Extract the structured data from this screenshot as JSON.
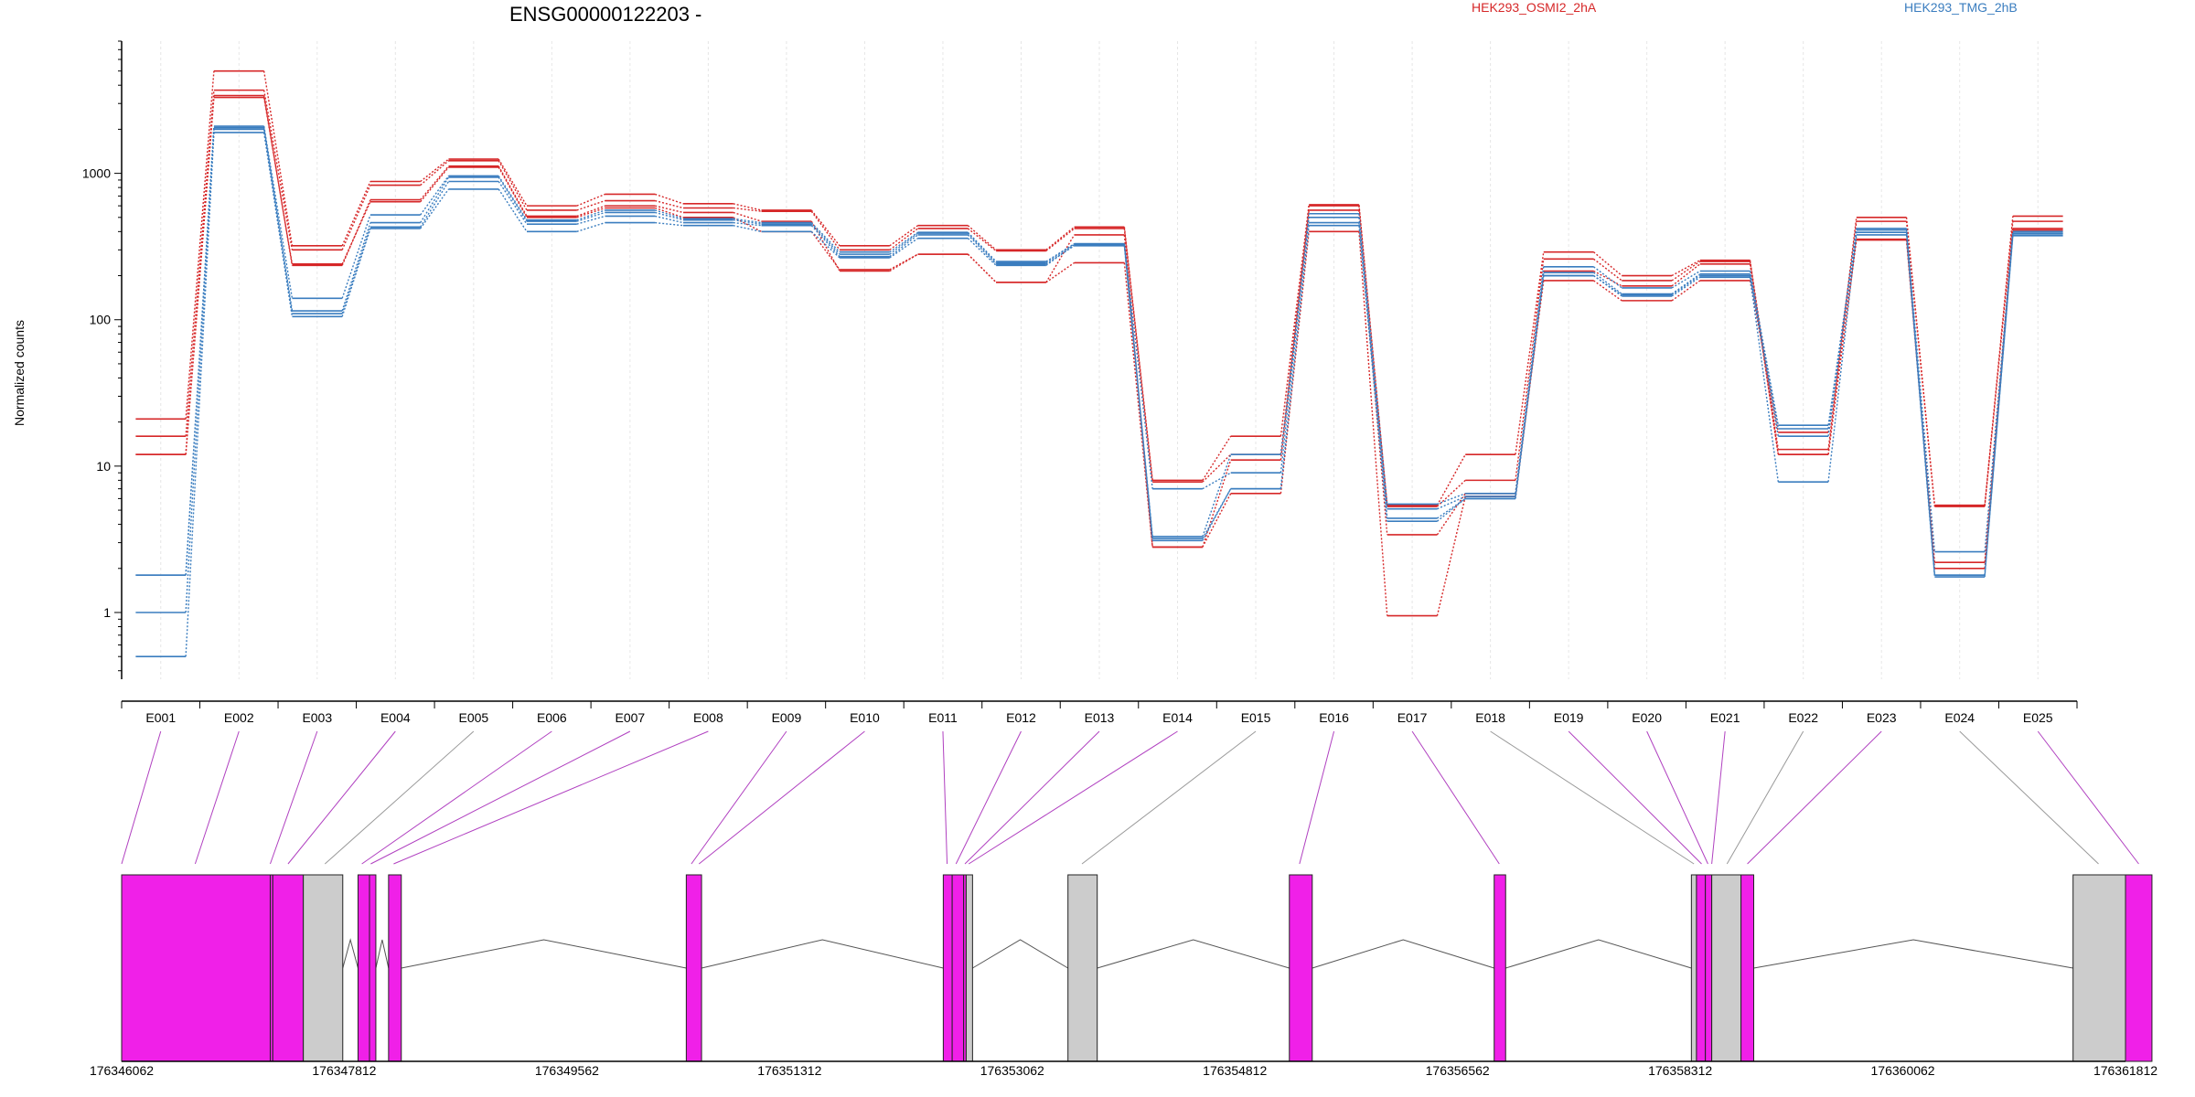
{
  "title": "ENSG00000122203 -",
  "ylabel": "Normalized counts",
  "legend": [
    {
      "label": "HEK293_OSMI2_2hA",
      "color": "#d62728"
    },
    {
      "label": "HEK293_TMG_2hB",
      "color": "#3a7dbf"
    }
  ],
  "colors": {
    "exon_tested": "#f020e8",
    "exon_other": "#cccccc",
    "connector_tested": "#b040c0",
    "connector_other": "#999999"
  },
  "chart_data": {
    "type": "line",
    "scale": "log",
    "ylim": [
      0.35,
      8000
    ],
    "yticks": [
      1,
      10,
      100,
      1000
    ],
    "ytick_labels": [
      "1",
      "10",
      "100",
      "1000"
    ],
    "categories": [
      "E001",
      "E002",
      "E003",
      "E004",
      "E005",
      "E006",
      "E007",
      "E008",
      "E009",
      "E010",
      "E011",
      "E012",
      "E013",
      "E014",
      "E015",
      "E016",
      "E017",
      "E018",
      "E019",
      "E020",
      "E021",
      "E022",
      "E023",
      "E024",
      "E025"
    ],
    "series": [
      {
        "group": 0,
        "values": [
          21,
          5000,
          320,
          880,
          1250,
          600,
          720,
          620,
          560,
          320,
          440,
          300,
          430,
          8,
          16,
          610,
          5.4,
          12,
          290,
          200,
          255,
          13,
          500,
          5.4,
          510
        ]
      },
      {
        "group": 0,
        "values": [
          16,
          3700,
          300,
          830,
          1220,
          560,
          650,
          580,
          550,
          300,
          420,
          295,
          420,
          7.8,
          12,
          600,
          5.3,
          8,
          260,
          185,
          250,
          12,
          470,
          5.3,
          470
        ]
      },
      {
        "group": 0,
        "values": [
          12,
          3400,
          235,
          660,
          1120,
          510,
          600,
          540,
          470,
          215,
          280,
          180,
          380,
          2.8,
          11,
          560,
          3.4,
          6.5,
          215,
          170,
          240,
          12,
          350,
          2.2,
          420
        ]
      },
      {
        "group": 0,
        "values": [
          12,
          3300,
          240,
          640,
          1100,
          500,
          580,
          500,
          400,
          220,
          280,
          180,
          245,
          2.8,
          6.5,
          400,
          0.95,
          6.2,
          185,
          135,
          185,
          17,
          355,
          2.0,
          410
        ]
      },
      {
        "group": 1,
        "values": [
          1.8,
          2100,
          140,
          520,
          960,
          480,
          560,
          490,
          460,
          290,
          395,
          250,
          330,
          7,
          9,
          530,
          5.5,
          6.5,
          230,
          165,
          215,
          19,
          420,
          2.6,
          400
        ]
      },
      {
        "group": 1,
        "values": [
          1.8,
          2050,
          115,
          460,
          940,
          470,
          540,
          480,
          450,
          280,
          390,
          245,
          330,
          3.3,
          12,
          500,
          5.1,
          6.2,
          210,
          150,
          205,
          18,
          410,
          1.8,
          390
        ]
      },
      {
        "group": 1,
        "values": [
          1.0,
          2000,
          110,
          430,
          880,
          450,
          510,
          460,
          440,
          270,
          380,
          240,
          320,
          3.2,
          7,
          460,
          4.4,
          6.0,
          200,
          148,
          200,
          16,
          395,
          1.8,
          385
        ]
      },
      {
        "group": 1,
        "values": [
          0.5,
          1900,
          105,
          420,
          780,
          400,
          460,
          440,
          400,
          265,
          360,
          235,
          325,
          3.1,
          7,
          440,
          4.2,
          6.0,
          200,
          145,
          195,
          7.8,
          380,
          1.75,
          375
        ]
      }
    ]
  },
  "gene_model": {
    "positions": [
      176346062,
      176361812
    ],
    "position_labels": [
      "176346062",
      "176347812",
      "176349562",
      "176351312",
      "176353062",
      "176354812",
      "176356562",
      "176358312",
      "176360062",
      "176361812"
    ],
    "exons": [
      {
        "start": 176346062,
        "end": 176347230,
        "tested": true
      },
      {
        "start": 176347230,
        "end": 176347250,
        "tested": true
      },
      {
        "start": 176347250,
        "end": 176347490,
        "tested": true
      },
      {
        "start": 176347490,
        "end": 176347800,
        "tested": false
      },
      {
        "start": 176347920,
        "end": 176348010,
        "tested": true
      },
      {
        "start": 176348010,
        "end": 176348060,
        "tested": true
      },
      {
        "start": 176348160,
        "end": 176348260,
        "tested": true
      },
      {
        "start": 176350500,
        "end": 176350620,
        "tested": true
      },
      {
        "start": 176352520,
        "end": 176352590,
        "tested": true
      },
      {
        "start": 176352590,
        "end": 176352680,
        "tested": true
      },
      {
        "start": 176352680,
        "end": 176352700,
        "tested": true
      },
      {
        "start": 176352700,
        "end": 176352750,
        "tested": false
      },
      {
        "start": 176353500,
        "end": 176353730,
        "tested": false
      },
      {
        "start": 176355240,
        "end": 176355420,
        "tested": true
      },
      {
        "start": 176356850,
        "end": 176356940,
        "tested": true
      },
      {
        "start": 176358400,
        "end": 176358440,
        "tested": false
      },
      {
        "start": 176358440,
        "end": 176358510,
        "tested": true
      },
      {
        "start": 176358510,
        "end": 176358560,
        "tested": true
      },
      {
        "start": 176358560,
        "end": 176358790,
        "tested": false
      },
      {
        "start": 176358790,
        "end": 176358890,
        "tested": true
      },
      {
        "start": 176361400,
        "end": 176361812,
        "tested": false
      },
      {
        "start": 176361812,
        "end": 176362020,
        "tested": true
      }
    ],
    "connections": [
      {
        "pos": 176346062,
        "tested": true
      },
      {
        "pos": 176346640,
        "tested": true
      },
      {
        "pos": 176347230,
        "tested": true
      },
      {
        "pos": 176347370,
        "tested": true
      },
      {
        "pos": 176347660,
        "tested": false
      },
      {
        "pos": 176347950,
        "tested": true
      },
      {
        "pos": 176348020,
        "tested": true
      },
      {
        "pos": 176348200,
        "tested": true
      },
      {
        "pos": 176350540,
        "tested": true
      },
      {
        "pos": 176350600,
        "tested": true
      },
      {
        "pos": 176352550,
        "tested": true
      },
      {
        "pos": 176352620,
        "tested": true
      },
      {
        "pos": 176352690,
        "tested": true
      },
      {
        "pos": 176352720,
        "tested": true
      },
      {
        "pos": 176353610,
        "tested": false
      },
      {
        "pos": 176355320,
        "tested": true
      },
      {
        "pos": 176356890,
        "tested": true
      },
      {
        "pos": 176358420,
        "tested": false
      },
      {
        "pos": 176358480,
        "tested": true
      },
      {
        "pos": 176358530,
        "tested": true
      },
      {
        "pos": 176358560,
        "tested": true
      },
      {
        "pos": 176358680,
        "tested": false
      },
      {
        "pos": 176358840,
        "tested": true
      },
      {
        "pos": 176361600,
        "tested": false
      },
      {
        "pos": 176361916,
        "tested": true
      }
    ]
  }
}
